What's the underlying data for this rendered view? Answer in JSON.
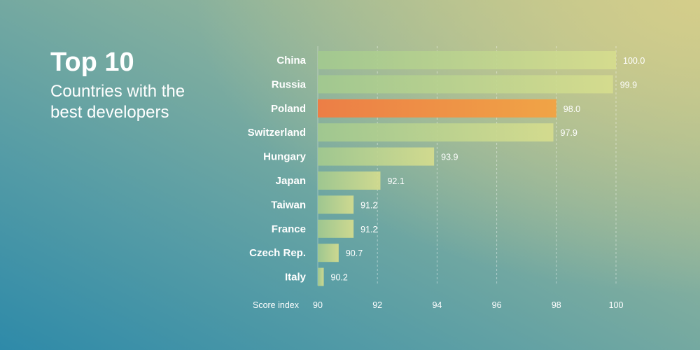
{
  "header": {
    "title": "Top 10",
    "subtitle": "Countries with the best developers"
  },
  "colors": {
    "bar_default_start": "#a2c98f",
    "bar_default_end": "#d6dd8e",
    "bar_highlight_start": "#ec7e46",
    "bar_highlight_end": "#f0a446",
    "text": "#ffffff"
  },
  "chart_data": {
    "type": "bar",
    "orientation": "horizontal",
    "title": "Top 10",
    "subtitle": "Countries with the best developers",
    "xlabel": "Score index",
    "ylabel": "",
    "xlim": [
      90,
      100
    ],
    "xticks": [
      90,
      92,
      94,
      96,
      98,
      100
    ],
    "grid": true,
    "highlight": "Poland",
    "categories": [
      "China",
      "Russia",
      "Poland",
      "Switzerland",
      "Hungary",
      "Japan",
      "Taiwan",
      "France",
      "Czech Rep.",
      "Italy"
    ],
    "values": [
      100.0,
      99.9,
      98.0,
      97.9,
      93.9,
      92.1,
      91.2,
      91.2,
      90.7,
      90.2
    ],
    "value_labels": [
      "100.0",
      "99.9",
      "98.0",
      "97.9",
      "93.9",
      "92.1",
      "91.2",
      "91.2",
      "90.7",
      "90.2"
    ]
  }
}
